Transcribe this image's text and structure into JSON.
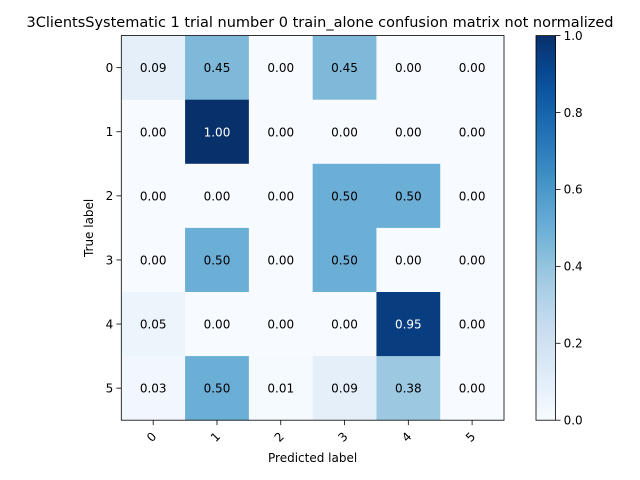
{
  "chart_data": {
    "type": "heatmap",
    "title": "3ClientsSystematic 1 trial number 0  train_alone confusion matrix not normalized",
    "xlabel": "Predicted label",
    "ylabel": "True label",
    "x_categories": [
      "0",
      "1",
      "2",
      "3",
      "4",
      "5"
    ],
    "y_categories": [
      "0",
      "1",
      "2",
      "3",
      "4",
      "5"
    ],
    "values": [
      [
        0.09,
        0.45,
        0.0,
        0.45,
        0.0,
        0.0
      ],
      [
        0.0,
        1.0,
        0.0,
        0.0,
        0.0,
        0.0
      ],
      [
        0.0,
        0.0,
        0.0,
        0.5,
        0.5,
        0.0
      ],
      [
        0.0,
        0.5,
        0.0,
        0.5,
        0.0,
        0.0
      ],
      [
        0.05,
        0.0,
        0.0,
        0.0,
        0.95,
        0.0
      ],
      [
        0.03,
        0.5,
        0.01,
        0.09,
        0.38,
        0.0
      ]
    ],
    "value_format": "0.00",
    "colormap": "Blues",
    "colorbar": {
      "range": [
        0.0,
        1.0
      ],
      "ticks": [
        "0.0",
        "0.2",
        "0.4",
        "0.6",
        "0.8",
        "1.0"
      ]
    },
    "grid": false
  }
}
